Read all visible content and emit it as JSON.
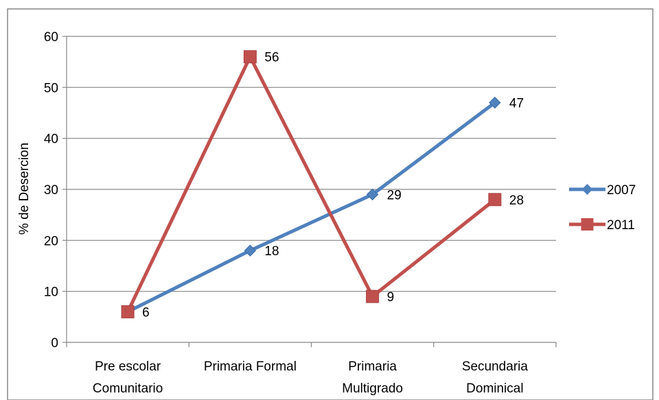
{
  "chart_data": {
    "type": "line",
    "categories": [
      [
        "Pre escolar",
        "Comunitario"
      ],
      [
        "Primaria Formal"
      ],
      [
        "Primaria",
        "Multigrado"
      ],
      [
        "Secundaria",
        "Dominical"
      ]
    ],
    "series": [
      {
        "name": "2007",
        "values": [
          6,
          18,
          29,
          47
        ],
        "color": "#4F81BD",
        "marker": "diamond"
      },
      {
        "name": "2011",
        "values": [
          6,
          56,
          9,
          28
        ],
        "color": "#C0504D",
        "marker": "square"
      }
    ],
    "data_labels": [
      {
        "series": 0,
        "index": 0,
        "text": "6"
      },
      {
        "series": 0,
        "index": 1,
        "text": "18"
      },
      {
        "series": 0,
        "index": 2,
        "text": "29"
      },
      {
        "series": 0,
        "index": 3,
        "text": "47"
      },
      {
        "series": 1,
        "index": 1,
        "text": "56"
      },
      {
        "series": 1,
        "index": 2,
        "text": "9"
      },
      {
        "series": 1,
        "index": 3,
        "text": "28"
      }
    ],
    "ylabel": "% de Desercion",
    "xlabel": "",
    "title": "",
    "ylim": [
      0,
      60
    ],
    "yticks": [
      0,
      10,
      20,
      30,
      40,
      50,
      60
    ],
    "grid": true,
    "legend_position": "right"
  }
}
